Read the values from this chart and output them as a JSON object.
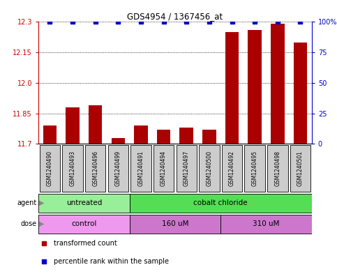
{
  "title": "GDS4954 / 1367456_at",
  "samples": [
    "GSM1240490",
    "GSM1240493",
    "GSM1240496",
    "GSM1240499",
    "GSM1240491",
    "GSM1240494",
    "GSM1240497",
    "GSM1240500",
    "GSM1240492",
    "GSM1240495",
    "GSM1240498",
    "GSM1240501"
  ],
  "transformed_counts": [
    11.79,
    11.88,
    11.89,
    11.73,
    11.79,
    11.77,
    11.78,
    11.77,
    12.25,
    12.26,
    12.29,
    12.2
  ],
  "percentile_ranks": [
    100,
    100,
    100,
    100,
    100,
    100,
    100,
    100,
    100,
    100,
    100,
    100
  ],
  "ylim_left": [
    11.7,
    12.3
  ],
  "yticks_left": [
    11.7,
    11.85,
    12.0,
    12.15,
    12.3
  ],
  "yticks_right": [
    0,
    25,
    50,
    75,
    100
  ],
  "bar_color": "#aa0000",
  "dot_color": "#0000cc",
  "agent_groups": [
    {
      "label": "untreated",
      "start": 0,
      "end": 4,
      "color": "#99ee99"
    },
    {
      "label": "cobalt chloride",
      "start": 4,
      "end": 12,
      "color": "#55dd55"
    }
  ],
  "dose_groups": [
    {
      "label": "control",
      "start": 0,
      "end": 4,
      "color": "#ee99ee"
    },
    {
      "label": "160 uM",
      "start": 4,
      "end": 8,
      "color": "#cc77cc"
    },
    {
      "label": "310 uM",
      "start": 8,
      "end": 12,
      "color": "#cc77cc"
    }
  ],
  "legend_items": [
    {
      "color": "#aa0000",
      "label": "transformed count"
    },
    {
      "color": "#0000cc",
      "label": "percentile rank within the sample"
    }
  ],
  "bg_color": "#ffffff",
  "plot_bg_color": "#ffffff",
  "left_axis_color": "#cc0000",
  "right_axis_color": "#0000cc",
  "grid_color": "#000000",
  "sample_box_color": "#cccccc",
  "dose_colors": [
    "#ee99ee",
    "#cc77cc",
    "#cc77cc"
  ]
}
